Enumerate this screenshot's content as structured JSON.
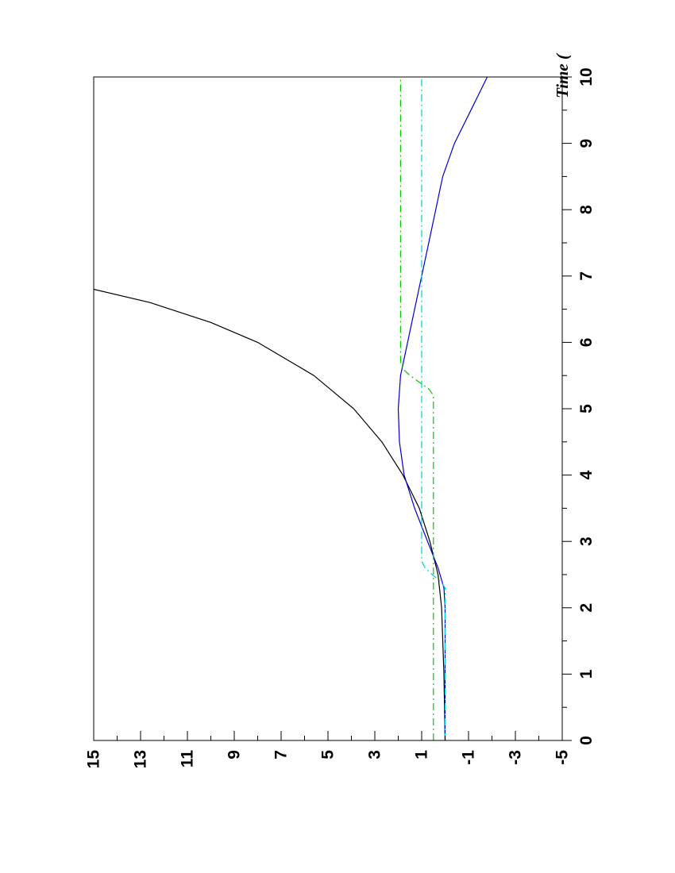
{
  "chart_data": {
    "type": "line",
    "orientation": "rotated-90-clockwise",
    "xlabel": "Time (",
    "ylabel": "",
    "xlim": [
      0,
      10
    ],
    "ylim": [
      -5,
      15
    ],
    "x_ticks": [
      "0",
      "1",
      "2",
      "3",
      "4",
      "5",
      "6",
      "7",
      "8",
      "9",
      "10"
    ],
    "y_ticks": [
      "-5",
      "-3",
      "-1",
      "1",
      "3",
      "5",
      "7",
      "9",
      "11",
      "13",
      "15"
    ],
    "grid": false,
    "legend": "none",
    "series": [
      {
        "color": "#000000",
        "style": "solid",
        "x": [
          0,
          1,
          2,
          2.5,
          3,
          3.5,
          4,
          4.5,
          5,
          5.5,
          6,
          6.3,
          6.6,
          6.8
        ],
        "y": [
          0,
          0.05,
          0.15,
          0.3,
          0.65,
          1.1,
          1.8,
          2.7,
          3.9,
          5.6,
          8.0,
          10.0,
          12.6,
          15.0
        ]
      },
      {
        "color": "#0000cc",
        "style": "solid",
        "x": [
          0,
          1,
          2,
          2.3,
          2.6,
          3,
          3.5,
          4,
          4.5,
          5,
          5.5,
          6,
          6.5,
          7,
          7.5,
          8,
          8.5,
          9,
          9.5,
          10
        ],
        "y": [
          0,
          0,
          0,
          0.05,
          0.3,
          0.75,
          1.3,
          1.75,
          1.95,
          2.0,
          1.9,
          1.6,
          1.3,
          1.0,
          0.7,
          0.4,
          0.1,
          -0.4,
          -1.1,
          -1.8
        ]
      },
      {
        "color": "#00cc00",
        "style": "dashdot",
        "x": [
          0,
          1,
          2,
          3,
          4,
          5,
          5.2,
          5.3,
          5.4,
          5.5,
          5.6,
          5.7,
          6,
          7,
          8,
          9,
          10
        ],
        "y": [
          0.5,
          0.5,
          0.5,
          0.5,
          0.5,
          0.5,
          0.5,
          0.7,
          1.1,
          1.5,
          1.8,
          1.9,
          1.9,
          1.9,
          1.9,
          1.9,
          1.9
        ]
      },
      {
        "color": "#00cccc",
        "style": "dashdot",
        "x": [
          0,
          1,
          2,
          2.3,
          2.4,
          2.5,
          2.6,
          2.7,
          3,
          4,
          5,
          6,
          7,
          8,
          9,
          10
        ],
        "y": [
          0,
          0,
          0,
          0,
          0.2,
          0.55,
          0.85,
          1.0,
          1.0,
          1.0,
          1.0,
          1.0,
          1.0,
          1.0,
          1.0,
          1.0
        ]
      }
    ]
  }
}
